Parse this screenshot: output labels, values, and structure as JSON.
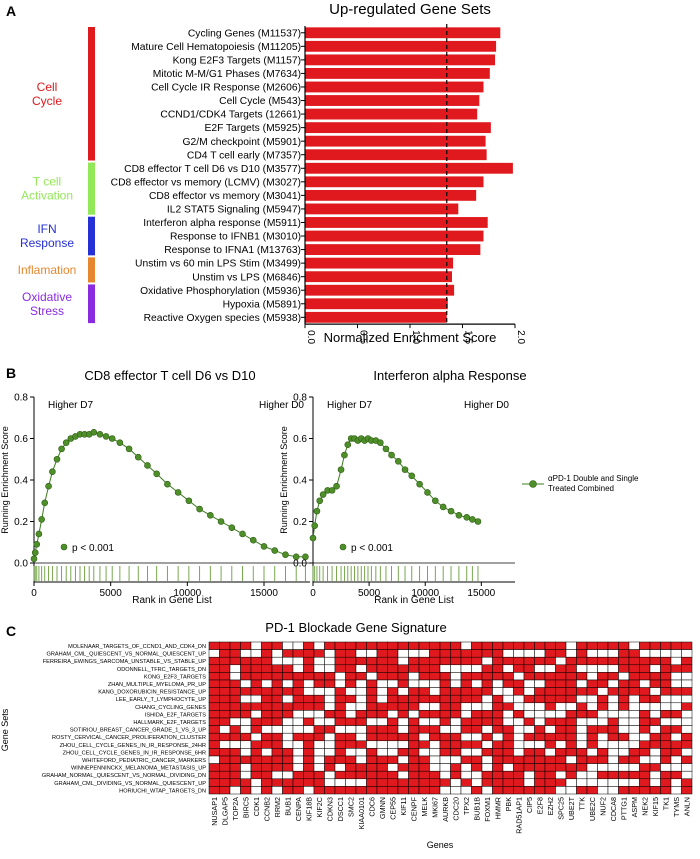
{
  "panels": {
    "a": {
      "label": "A",
      "chart_data": {
        "type": "bar",
        "orientation": "horizontal",
        "title": "Up-regulated Gene Sets",
        "xlabel": "Normalized Enrichment Score",
        "xlim": [
          0,
          2.0
        ],
        "xticks": [
          "0.0",
          "0.5",
          "1.0",
          "1.5",
          "2.0"
        ],
        "reference_line": 1.35,
        "bar_color": "#e0191e",
        "categories": [
          "Cycling Genes (M11537)",
          "Mature Cell Hematopoiesis (M11205)",
          "Kong E2F3 Targets (M1157)",
          "Mitotic M-M/G1 Phases (M7634)",
          "Cell Cycle IR Response (M2606)",
          "Cell Cycle (M543)",
          "CCND1/CDK4 Targets (12661)",
          "E2F Targets (M5925)",
          "G2/M checkpoint (M5901)",
          "CD4 T cell early (M7357)",
          "CD8 effector T cell D6 vs D10 (M3577)",
          "CD8 effector vs memory (LCMV) (M3027)",
          "CD8 effector vs memory (M3041)",
          "IL2 STAT5 Signaling (M5947)",
          "Interferon alpha response (M5911)",
          "Response to IFNB1 (M3010)",
          "Response to IFNA1 (M13763)",
          "Unstim vs 60 min LPS Stim (M3499)",
          "Unstim vs LPS (M6846)",
          "Oxidative Phosphorylation (M5936)",
          "Hypoxia (M5891)",
          "Reactive Oxygen species (M5938)"
        ],
        "values": [
          1.86,
          1.82,
          1.81,
          1.76,
          1.7,
          1.66,
          1.64,
          1.77,
          1.72,
          1.73,
          1.98,
          1.7,
          1.63,
          1.46,
          1.74,
          1.7,
          1.67,
          1.41,
          1.4,
          1.42,
          1.36,
          1.35
        ],
        "groups": [
          {
            "label": "Cell\nCycle",
            "color": "#e0191e",
            "start": 0,
            "end": 9
          },
          {
            "label": "T cell\nActivation",
            "color": "#93e85a",
            "start": 10,
            "end": 13
          },
          {
            "label": "IFN\nResponse",
            "color": "#2530d6",
            "start": 14,
            "end": 16
          },
          {
            "label": "Inflamation",
            "color": "#e6872f",
            "start": 17,
            "end": 18
          },
          {
            "label": "Oxidative\nStress",
            "color": "#8a2be2",
            "start": 19,
            "end": 21
          }
        ]
      }
    },
    "b": {
      "label": "B",
      "chart_data": [
        {
          "type": "line",
          "title": "CD8 effector T cell D6 vs D10",
          "xlabel": "Rank in Gene List",
          "ylabel": "Running Enrichment Score",
          "xlim": [
            0,
            18000
          ],
          "ylim": [
            0,
            0.8
          ],
          "xticks": [
            "0",
            "5000",
            "10000",
            "15000"
          ],
          "yticks": [
            "0.0",
            "0.2",
            "0.4",
            "0.6",
            "0.8"
          ],
          "left_label": "Higher D7",
          "right_label": "Higher D0",
          "pvalue": "p < 0.001",
          "line_color": "#3b7d1e",
          "point_color": "#4f8f2a",
          "x": [
            0,
            80,
            180,
            320,
            500,
            700,
            950,
            1200,
            1500,
            1800,
            2100,
            2400,
            2700,
            3000,
            3300,
            3600,
            3900,
            4300,
            4700,
            5100,
            5600,
            6200,
            6800,
            7400,
            8000,
            8700,
            9400,
            10100,
            10800,
            11500,
            12200,
            12900,
            13600,
            14300,
            15000,
            15700,
            16400,
            17100,
            17700
          ],
          "y": [
            0.02,
            0.05,
            0.09,
            0.14,
            0.21,
            0.29,
            0.37,
            0.44,
            0.5,
            0.55,
            0.58,
            0.6,
            0.61,
            0.62,
            0.62,
            0.62,
            0.63,
            0.62,
            0.61,
            0.6,
            0.58,
            0.55,
            0.51,
            0.47,
            0.43,
            0.38,
            0.34,
            0.3,
            0.26,
            0.23,
            0.2,
            0.17,
            0.14,
            0.11,
            0.08,
            0.06,
            0.04,
            0.03,
            0.03
          ]
        },
        {
          "type": "line",
          "title": "Interferon alpha Response",
          "xlabel": "Rank in Gene List",
          "ylabel": "Running Enrichment Score",
          "xlim": [
            0,
            18000
          ],
          "ylim": [
            0,
            0.8
          ],
          "xticks": [
            "0",
            "5000",
            "10000",
            "15000"
          ],
          "yticks": [
            "0.0",
            "0.2",
            "0.4",
            "0.6",
            "0.8"
          ],
          "left_label": "Higher D7",
          "right_label": "Higher D0",
          "pvalue": "p < 0.001",
          "legend": "αPD-1 Double and Single\nTreated Combined",
          "line_color": "#3b7d1e",
          "point_color": "#4f8f2a",
          "x": [
            0,
            150,
            350,
            600,
            900,
            1300,
            1700,
            2100,
            2500,
            2800,
            3100,
            3400,
            3700,
            4000,
            4300,
            4600,
            4900,
            5200,
            5600,
            6000,
            6500,
            7000,
            7600,
            8200,
            8800,
            9500,
            10200,
            10900,
            11600,
            12300,
            13000,
            13700,
            14200,
            14700
          ],
          "y": [
            0.12,
            0.18,
            0.25,
            0.3,
            0.33,
            0.35,
            0.35,
            0.37,
            0.45,
            0.52,
            0.57,
            0.6,
            0.6,
            0.59,
            0.6,
            0.59,
            0.6,
            0.59,
            0.59,
            0.58,
            0.55,
            0.52,
            0.49,
            0.45,
            0.42,
            0.38,
            0.34,
            0.3,
            0.27,
            0.25,
            0.23,
            0.22,
            0.21,
            0.2
          ]
        }
      ]
    },
    "c": {
      "label": "C",
      "chart_data": {
        "type": "heatmap",
        "title": "PD-1 Blockade Gene Signature",
        "xlabel": "Genes",
        "ylabel": "Gene Sets",
        "fill_color": "#e0191e",
        "rows": [
          "MOLENAAR_TARGETS_OF_CCND1_AND_CDK4_DN",
          "GRAHAM_CML_QUIESCENT_VS_NORMAL_QUIESCENT_UP",
          "FERREIRA_EWINGS_SARCOMA_UNSTABLE_VS_STABLE_UP",
          "ODONNELL_TFRC_TARGETS_DN",
          "KONG_E2F3_TARGETS",
          "ZHAN_MULTIPLE_MYELOMA_PR_UP",
          "KANG_DOXORUBICIN_RESISTANCE_UP",
          "LEE_EARLY_T_LYMPHOCYTE_UP",
          "CHANG_CYCLING_GENES",
          "ISHIDA_E2F_TARGETS",
          "HALLMARK_E2F_TARGETS",
          "SOTIRIOU_BREAST_CANCER_GRADE_1_VS_3_UP",
          "ROSTY_CERVICAL_CANCER_PROLIFERATION_CLUSTER",
          "ZHOU_CELL_CYCLE_GENES_IN_IR_RESPONSE_24HR",
          "ZHOU_CELL_CYCLE_GENES_IN_IR_RESPONSE_6HR",
          "WHITEFORD_PEDIATRIC_CANCER_MARKERS",
          "WINNEPENNINCKX_MELANOMA_METASTASIS_UP",
          "GRAHAM_NORMAL_QUIESCENT_VS_NORMAL_DIVIDING_DN",
          "GRAHAM_CML_DIVIDING_VS_NORMAL_QUIESCENT_UP",
          "HORIUCHI_WTAP_TARGETS_DN"
        ],
        "columns": [
          "NUSAP1",
          "DLGAP5",
          "TOP2A",
          "BIRC5",
          "CDK1",
          "CCNB2",
          "RRM2",
          "BUB1",
          "CENPA",
          "KIF18B",
          "KIF2C",
          "CDKN3",
          "DSCC1",
          "SMC2",
          "KIAA0101",
          "CDC6",
          "GMNN",
          "CEP55",
          "KIF11",
          "CENPF",
          "MELK",
          "MKI67",
          "AURKB",
          "CDC20",
          "TPX2",
          "BUB1B",
          "FOXM1",
          "HMMR",
          "PBK",
          "RAD51AP1",
          "CIP5",
          "E2F8",
          "EZH2",
          "SPC25",
          "UBE2T",
          "TTK",
          "UBE2C",
          "NUF2",
          "CDCA8",
          "PTTG1",
          "ASPM",
          "NEK2",
          "KIF15",
          "TK1",
          "TYMS",
          "ANLN"
        ],
        "matrix": [
          "1111011001011111111111110111111111011111011111",
          "0110010111101100110001111111000011010001100000",
          "1111110001001111110111111101111110111111111101",
          "1101111101001101111111000011011001100001110111",
          "1101111111110110111011101111101111110110111100",
          "1110101010110101001000101010110011101101101100",
          "1111111110001001010110111110010111111011110111",
          "1110011011101101011111111101001111100101011000",
          "1111111111101001111100110001100010010101000001",
          "1111011100011011101011110111010000111000010110",
          "1100111001001110010100101111001011100010011000",
          "1010100000110001110111001101100101101110010110",
          "1111011011101101111101110010101111101011001101",
          "1000111001001110000110111101100010101000011111",
          "1110101101001001001100110011101101110100110110",
          "0111111101011101110110001101111111011101100101",
          "1110111101010111101110010101011111110000011000",
          "1110110011101111110111010011110110100111110110",
          "1111011111100001111111101011110111000000010101",
          "1101010110111111111111000101111110011001111101"
        ]
      }
    }
  }
}
